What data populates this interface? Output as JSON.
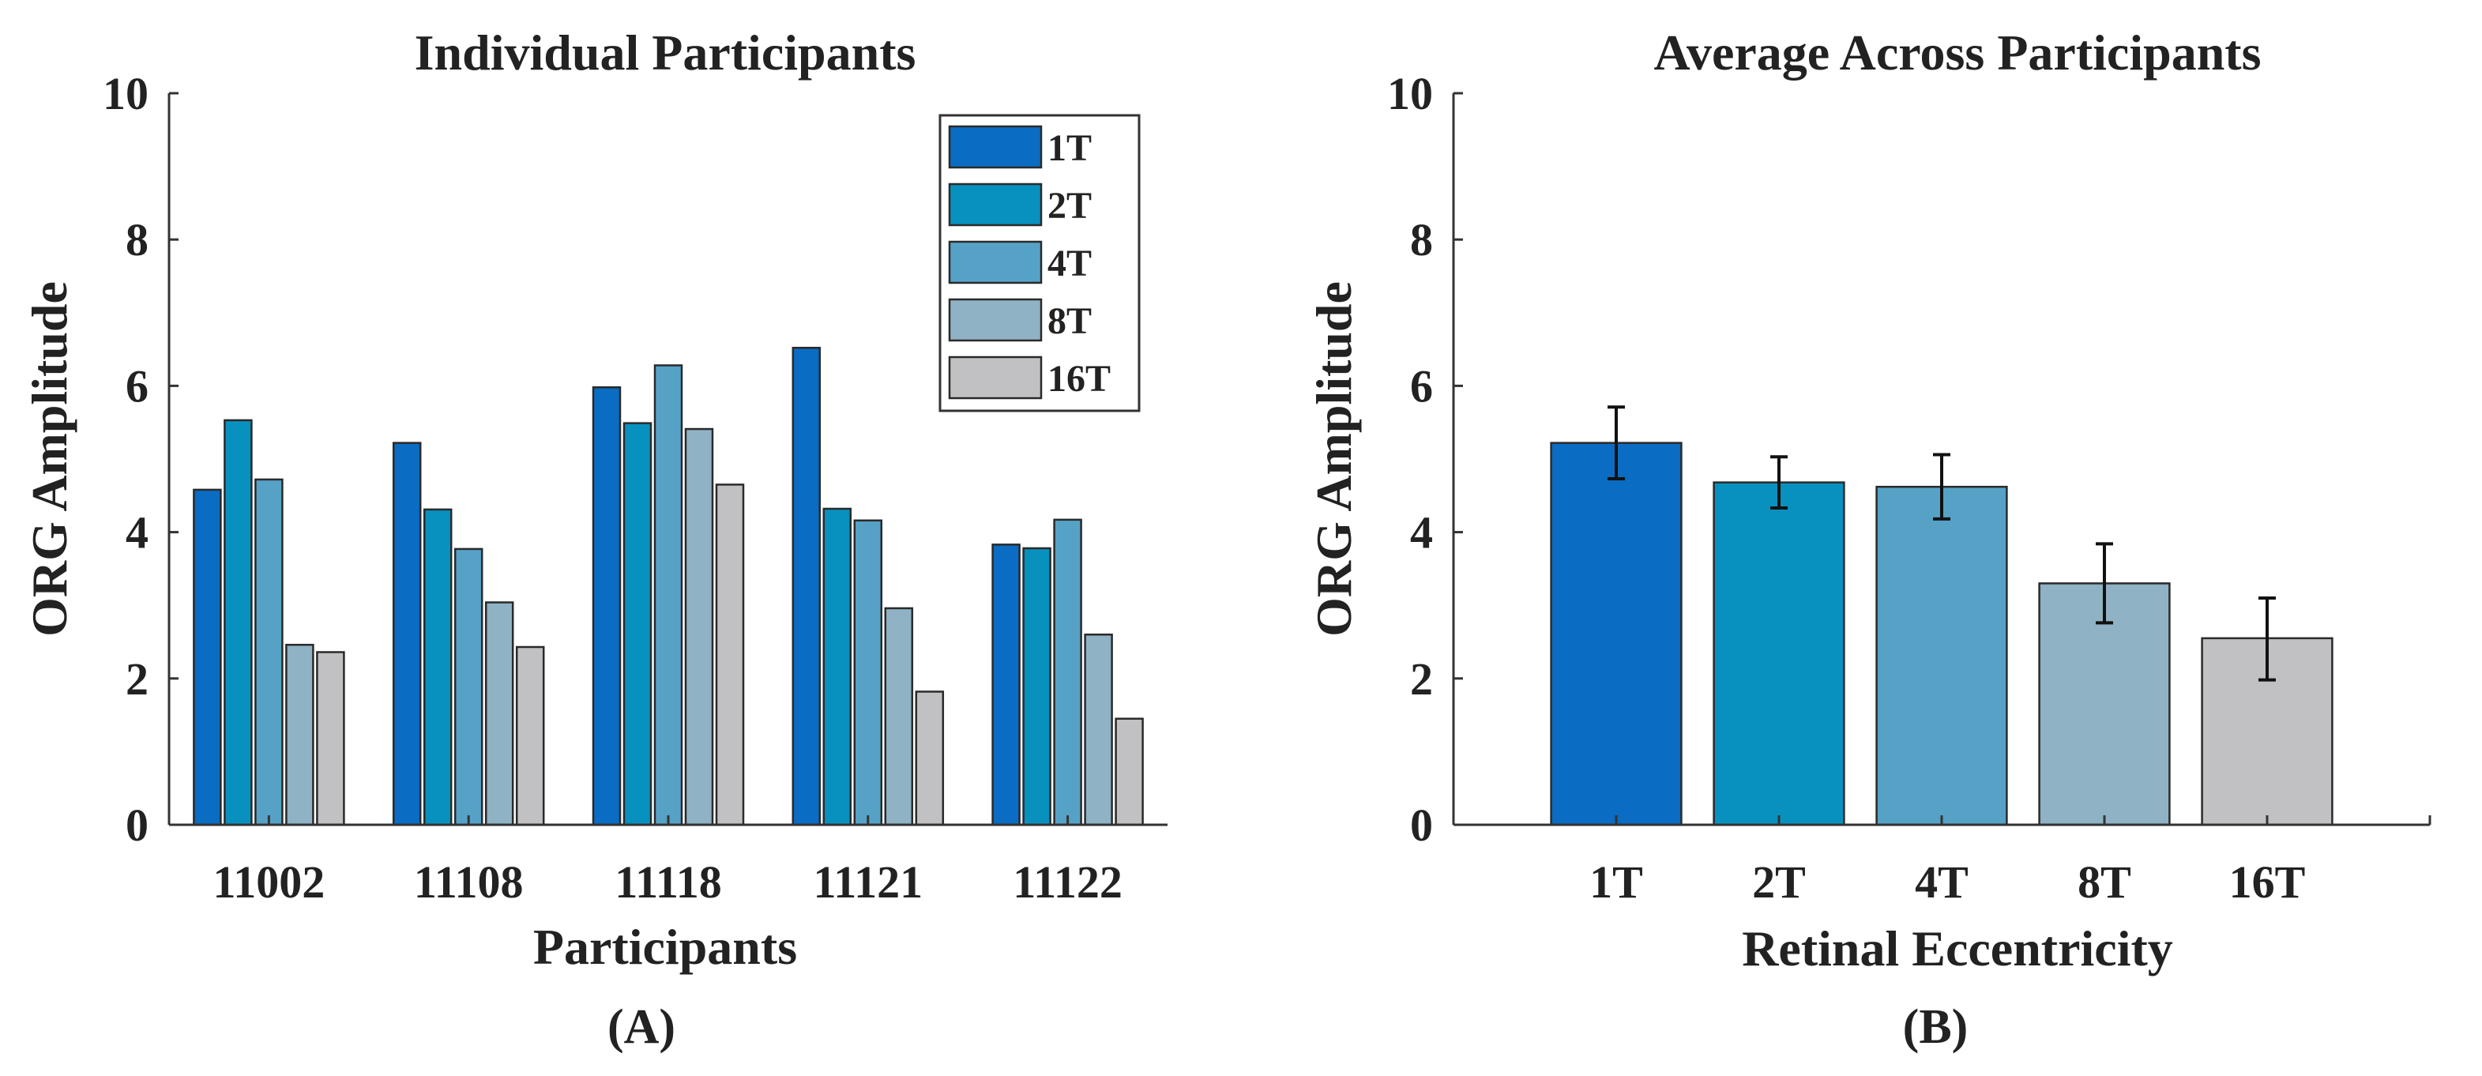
{
  "colors": {
    "1T": "#0a6cc2",
    "2T": "#0891bf",
    "4T": "#56a2c7",
    "8T": "#8fb2c4",
    "16T": "#c1c1c3"
  },
  "chart_data": [
    {
      "type": "bar",
      "title": "Individual Participants",
      "xlabel": "Participants",
      "ylabel": "ORG Amplitude",
      "ylim": [
        0,
        10
      ],
      "yticks": [
        "0",
        "2",
        "4",
        "6",
        "8",
        "10"
      ],
      "categories": [
        "11002",
        "11108",
        "11118",
        "11121",
        "11122"
      ],
      "legend": {
        "placement": "top-right",
        "entries": [
          "1T",
          "2T",
          "4T",
          "8T",
          "16T"
        ]
      },
      "series": [
        {
          "name": "1T",
          "values": [
            4.58,
            5.22,
            5.98,
            6.52,
            3.83
          ]
        },
        {
          "name": "2T",
          "values": [
            5.53,
            4.31,
            5.49,
            4.32,
            3.78
          ]
        },
        {
          "name": "4T",
          "values": [
            4.72,
            3.77,
            6.28,
            4.16,
            4.17
          ]
        },
        {
          "name": "8T",
          "values": [
            2.46,
            3.04,
            5.41,
            2.96,
            2.6
          ]
        },
        {
          "name": "16T",
          "values": [
            2.36,
            2.43,
            4.65,
            1.82,
            1.45
          ]
        }
      ],
      "panel_label": "(A)"
    },
    {
      "type": "bar",
      "title": "Average Across Participants",
      "xlabel": "Retinal Eccentricity",
      "ylabel": "ORG Amplitude",
      "ylim": [
        0,
        10
      ],
      "yticks": [
        "0",
        "2",
        "4",
        "6",
        "8",
        "10"
      ],
      "categories": [
        "1T",
        "2T",
        "4T",
        "8T",
        "16T"
      ],
      "values": [
        5.22,
        4.68,
        4.62,
        3.3,
        2.55
      ],
      "error_low": [
        4.73,
        4.33,
        4.18,
        2.76,
        1.98
      ],
      "error_high": [
        5.71,
        5.03,
        5.06,
        3.84,
        3.1
      ],
      "panel_label": "(B)"
    }
  ]
}
